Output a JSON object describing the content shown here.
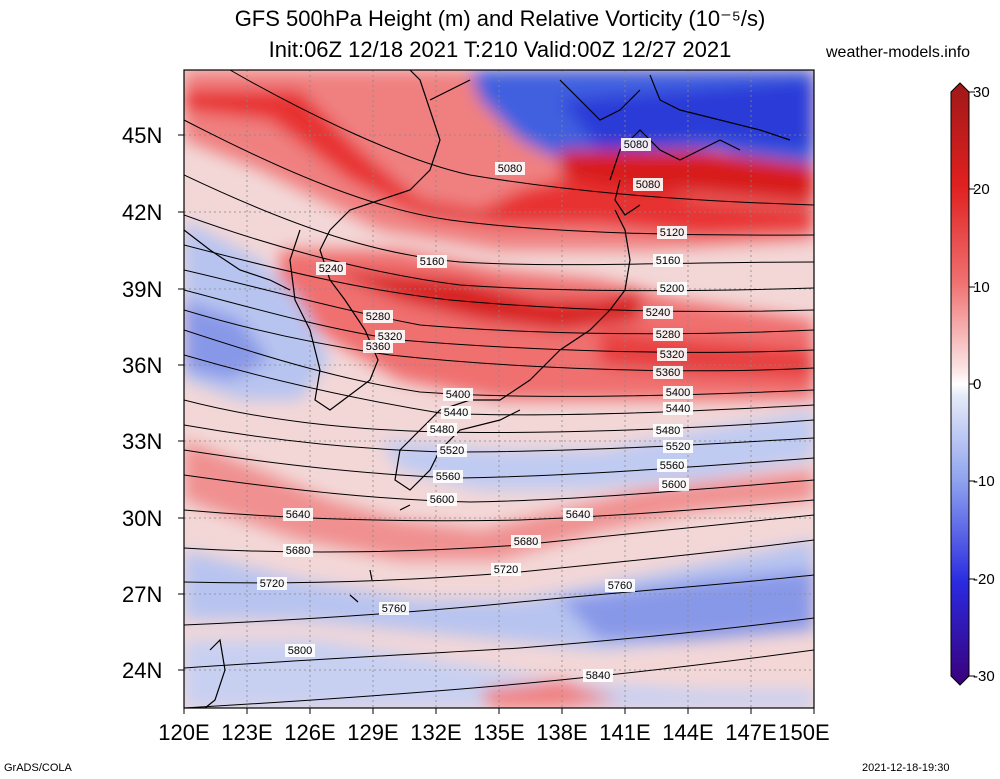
{
  "title": {
    "line1": "GFS 500hPa Height (m) and Relative Vorticity (10⁻⁵/s)",
    "line2": "Init:06Z 12/18 2021 T:210 Valid:00Z 12/27 2021"
  },
  "site": "weather-models.info",
  "footer": {
    "left": "GrADS/COLA",
    "right": "2021-12-18-19:30"
  },
  "axes": {
    "lat_labels": [
      "45N",
      "42N",
      "39N",
      "36N",
      "33N",
      "30N",
      "27N",
      "24N"
    ],
    "lon_labels": [
      "120E",
      "123E",
      "126E",
      "129E",
      "132E",
      "135E",
      "138E",
      "141E",
      "144E",
      "147E",
      "150E"
    ]
  },
  "colorbar": {
    "labels": [
      "30",
      "20",
      "10",
      "0",
      "-10",
      "-20",
      "-30"
    ],
    "colors": [
      "#3a007a",
      "#1a1ad9",
      "#3b5ef0",
      "#8fa3ee",
      "#d5dcf5",
      "#ffffff",
      "#f7cccc",
      "#f08c8c",
      "#ee3a3a",
      "#d91f1f",
      "#a01818"
    ]
  },
  "contours": [
    {
      "value": "5080",
      "label": "5080"
    },
    {
      "value": "5120",
      "label": "5120"
    },
    {
      "value": "5160",
      "label": "5160"
    },
    {
      "value": "5200",
      "label": "5200"
    },
    {
      "value": "5240",
      "label": "5240"
    },
    {
      "value": "5280",
      "label": "5280"
    },
    {
      "value": "5320",
      "label": "5320"
    },
    {
      "value": "5360",
      "label": "5360"
    },
    {
      "value": "5400",
      "label": "5400"
    },
    {
      "value": "5440",
      "label": "5440"
    },
    {
      "value": "5480",
      "label": "5480"
    },
    {
      "value": "5520",
      "label": "5520"
    },
    {
      "value": "5560",
      "label": "5560"
    },
    {
      "value": "5600",
      "label": "5600"
    },
    {
      "value": "5640",
      "label": "5640"
    },
    {
      "value": "5680",
      "label": "5680"
    },
    {
      "value": "5720",
      "label": "5720"
    },
    {
      "value": "5760",
      "label": "5760"
    },
    {
      "value": "5800",
      "label": "5800"
    },
    {
      "value": "5840",
      "label": "5840"
    }
  ]
}
